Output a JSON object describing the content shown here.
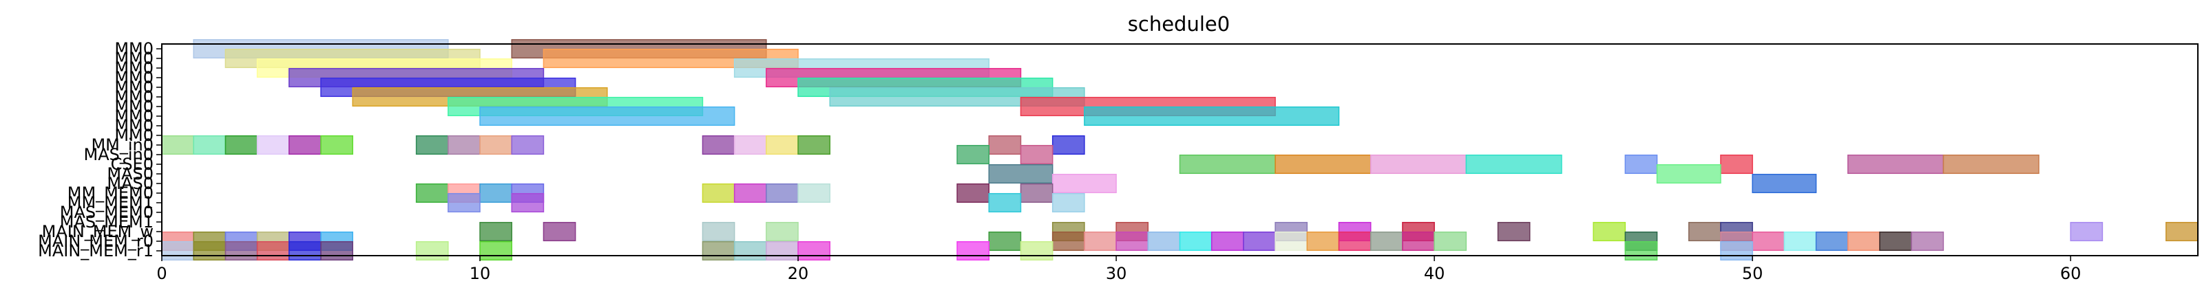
{
  "chart_data": {
    "type": "bar",
    "title": "schedule0",
    "xlabel": "",
    "ylabel": "",
    "xlim": [
      0,
      64
    ],
    "xticks": [
      0,
      10,
      20,
      30,
      40,
      50,
      60
    ],
    "rows": [
      "MM0",
      "MM0",
      "MM0",
      "MM0",
      "MM0",
      "MM0",
      "MM0",
      "MM0",
      "MM0",
      "MM0",
      "MM_in0",
      "MAS_in0",
      "CSE0",
      "MAS0",
      "MAS0",
      "MM_MEM0",
      "MM_MEM1",
      "MAS_MEM0",
      "MAS_MEM1",
      "MAIN_MEM_w",
      "MAIN_MEM_r0",
      "MAIN_MEM_r1"
    ],
    "tasks": [
      {
        "row": 0,
        "start": 1,
        "end": 9,
        "color": "#aec7e8"
      },
      {
        "row": 0,
        "start": 11,
        "end": 19,
        "color": "#8c564b"
      },
      {
        "row": 1,
        "start": 2,
        "end": 10,
        "color": "#dbdb8d"
      },
      {
        "row": 1,
        "start": 12,
        "end": 20,
        "color": "#ff9f50"
      },
      {
        "row": 2,
        "start": 3,
        "end": 11,
        "color": "#ffff99"
      },
      {
        "row": 2,
        "start": 18,
        "end": 26,
        "color": "#9edae5"
      },
      {
        "row": 3,
        "start": 4,
        "end": 12,
        "color": "#6a3dcb"
      },
      {
        "row": 3,
        "start": 19,
        "end": 27,
        "color": "#e7298a"
      },
      {
        "row": 4,
        "start": 5,
        "end": 13,
        "color": "#3b2fe0"
      },
      {
        "row": 4,
        "start": 20,
        "end": 28,
        "color": "#2ee8a8"
      },
      {
        "row": 5,
        "start": 6,
        "end": 14,
        "color": "#d9a326"
      },
      {
        "row": 5,
        "start": 21,
        "end": 29,
        "color": "#6fcfcf"
      },
      {
        "row": 6,
        "start": 9,
        "end": 17,
        "color": "#3ff2a6"
      },
      {
        "row": 6,
        "start": 27,
        "end": 35,
        "color": "#ec3a4f"
      },
      {
        "row": 7,
        "start": 10,
        "end": 18,
        "color": "#46b4f0"
      },
      {
        "row": 7,
        "start": 29,
        "end": 37,
        "color": "#1ec8d0"
      },
      {
        "row": 10,
        "start": 0,
        "end": 1,
        "color": "#98df8a"
      },
      {
        "row": 10,
        "start": 1,
        "end": 2,
        "color": "#6ee8b0"
      },
      {
        "row": 10,
        "start": 2,
        "end": 3,
        "color": "#2ca02c"
      },
      {
        "row": 10,
        "start": 3,
        "end": 4,
        "color": "#e0c8f8"
      },
      {
        "row": 10,
        "start": 4,
        "end": 5,
        "color": "#a12aa8"
      },
      {
        "row": 10,
        "start": 5,
        "end": 6,
        "color": "#5fdc2e"
      },
      {
        "row": 10,
        "start": 8,
        "end": 9,
        "color": "#2e8b57"
      },
      {
        "row": 10,
        "start": 9,
        "end": 10,
        "color": "#a67ca6"
      },
      {
        "row": 10,
        "start": 10,
        "end": 11,
        "color": "#e8a07c"
      },
      {
        "row": 10,
        "start": 11,
        "end": 12,
        "color": "#8a5fd8"
      },
      {
        "row": 10,
        "start": 17,
        "end": 18,
        "color": "#8a3ea0"
      },
      {
        "row": 10,
        "start": 18,
        "end": 19,
        "color": "#e8b4e8"
      },
      {
        "row": 10,
        "start": 19,
        "end": 20,
        "color": "#f0e070"
      },
      {
        "row": 10,
        "start": 20,
        "end": 21,
        "color": "#4a9e2a"
      },
      {
        "row": 10,
        "start": 26,
        "end": 27,
        "color": "#b85a6a"
      },
      {
        "row": 10,
        "start": 28,
        "end": 29,
        "color": "#2a2ad8"
      },
      {
        "row": 11,
        "start": 25,
        "end": 26,
        "color": "#3aa862"
      },
      {
        "row": 11,
        "start": 27,
        "end": 28,
        "color": "#c8588a"
      },
      {
        "row": 12,
        "start": 32,
        "end": 35,
        "color": "#5cc85c"
      },
      {
        "row": 12,
        "start": 35,
        "end": 38,
        "color": "#d9861f"
      },
      {
        "row": 12,
        "start": 38,
        "end": 41,
        "color": "#e89ad8"
      },
      {
        "row": 12,
        "start": 41,
        "end": 44,
        "color": "#2ee0c8"
      },
      {
        "row": 12,
        "start": 46,
        "end": 47,
        "color": "#6a8ef0"
      },
      {
        "row": 12,
        "start": 49,
        "end": 50,
        "color": "#ec3a4f"
      },
      {
        "row": 12,
        "start": 53,
        "end": 56,
        "color": "#b8589a"
      },
      {
        "row": 12,
        "start": 56,
        "end": 59,
        "color": "#c87a4a"
      },
      {
        "row": 13,
        "start": 26,
        "end": 28,
        "color": "#4a7a8a"
      },
      {
        "row": 13,
        "start": 47,
        "end": 49,
        "color": "#6af088"
      },
      {
        "row": 14,
        "start": 28,
        "end": 30,
        "color": "#ee9ee8"
      },
      {
        "row": 14,
        "start": 50,
        "end": 52,
        "color": "#2a6ad8"
      },
      {
        "row": 15,
        "start": 8,
        "end": 9,
        "color": "#3ab03a"
      },
      {
        "row": 15,
        "start": 9,
        "end": 10,
        "color": "#ff9896"
      },
      {
        "row": 15,
        "start": 10,
        "end": 11,
        "color": "#3a9ed8"
      },
      {
        "row": 15,
        "start": 11,
        "end": 12,
        "color": "#6a6ae8"
      },
      {
        "row": 15,
        "start": 17,
        "end": 18,
        "color": "#c8d830"
      },
      {
        "row": 15,
        "start": 18,
        "end": 19,
        "color": "#c83ac8"
      },
      {
        "row": 15,
        "start": 19,
        "end": 20,
        "color": "#7a7ac8"
      },
      {
        "row": 15,
        "start": 20,
        "end": 21,
        "color": "#b8e0d8"
      },
      {
        "row": 15,
        "start": 25,
        "end": 26,
        "color": "#7a2a5a"
      },
      {
        "row": 15,
        "start": 27,
        "end": 28,
        "color": "#8a5a8a"
      },
      {
        "row": 16,
        "start": 9,
        "end": 10,
        "color": "#7a8ae8"
      },
      {
        "row": 16,
        "start": 11,
        "end": 12,
        "color": "#a84ad8"
      },
      {
        "row": 16,
        "start": 26,
        "end": 27,
        "color": "#2ec8d8"
      },
      {
        "row": 16,
        "start": 28,
        "end": 29,
        "color": "#9ad0e8"
      },
      {
        "row": 19,
        "start": 10,
        "end": 11,
        "color": "#3a8a3a"
      },
      {
        "row": 19,
        "start": 12,
        "end": 13,
        "color": "#8a3a8a"
      },
      {
        "row": 19,
        "start": 17,
        "end": 18,
        "color": "#a8c8c8"
      },
      {
        "row": 19,
        "start": 19,
        "end": 20,
        "color": "#a8e0a0"
      },
      {
        "row": 19,
        "start": 28,
        "end": 29,
        "color": "#8a8a3a"
      },
      {
        "row": 19,
        "start": 30,
        "end": 31,
        "color": "#b84a4a"
      },
      {
        "row": 19,
        "start": 35,
        "end": 36,
        "color": "#8a7ab8"
      },
      {
        "row": 19,
        "start": 37,
        "end": 38,
        "color": "#c82ad8"
      },
      {
        "row": 19,
        "start": 39,
        "end": 40,
        "color": "#c81a3a"
      },
      {
        "row": 19,
        "start": 42,
        "end": 43,
        "color": "#6a3a5a"
      },
      {
        "row": 19,
        "start": 45,
        "end": 46,
        "color": "#a8e82e"
      },
      {
        "row": 19,
        "start": 48,
        "end": 49,
        "color": "#8a6a5a"
      },
      {
        "row": 19,
        "start": 49,
        "end": 50,
        "color": "#3a3a8a"
      },
      {
        "row": 19,
        "start": 60,
        "end": 61,
        "color": "#a88af0"
      },
      {
        "row": 19,
        "start": 63,
        "end": 64,
        "color": "#c8922a"
      },
      {
        "row": 20,
        "start": 0,
        "end": 1,
        "color": "#f08080"
      },
      {
        "row": 20,
        "start": 1,
        "end": 2,
        "color": "#8a8a2a"
      },
      {
        "row": 20,
        "start": 2,
        "end": 3,
        "color": "#6a7ae8"
      },
      {
        "row": 20,
        "start": 3,
        "end": 4,
        "color": "#b8b878"
      },
      {
        "row": 20,
        "start": 4,
        "end": 5,
        "color": "#3a2ad8"
      },
      {
        "row": 20,
        "start": 5,
        "end": 6,
        "color": "#3ab0f0"
      },
      {
        "row": 20,
        "start": 26,
        "end": 27,
        "color": "#3a9a3a"
      },
      {
        "row": 20,
        "start": 28,
        "end": 29,
        "color": "#9a5a3a"
      },
      {
        "row": 20,
        "start": 29,
        "end": 30,
        "color": "#e88a8a"
      },
      {
        "row": 20,
        "start": 30,
        "end": 31,
        "color": "#c84ab8"
      },
      {
        "row": 20,
        "start": 31,
        "end": 32,
        "color": "#8ab8e8"
      },
      {
        "row": 20,
        "start": 32,
        "end": 33,
        "color": "#2ee8e8"
      },
      {
        "row": 20,
        "start": 33,
        "end": 34,
        "color": "#b82ad8"
      },
      {
        "row": 20,
        "start": 34,
        "end": 35,
        "color": "#7a3ad8"
      },
      {
        "row": 20,
        "start": 35,
        "end": 36,
        "color": "#e8f0d8"
      },
      {
        "row": 20,
        "start": 36,
        "end": 37,
        "color": "#e89a3a"
      },
      {
        "row": 20,
        "start": 37,
        "end": 38,
        "color": "#e82a6a"
      },
      {
        "row": 20,
        "start": 38,
        "end": 39,
        "color": "#8a9a8a"
      },
      {
        "row": 20,
        "start": 39,
        "end": 40,
        "color": "#c82a8a"
      },
      {
        "row": 20,
        "start": 40,
        "end": 41,
        "color": "#8ad88a"
      },
      {
        "row": 20,
        "start": 46,
        "end": 47,
        "color": "#2a6a4a"
      },
      {
        "row": 20,
        "start": 49,
        "end": 50,
        "color": "#d88a9a"
      },
      {
        "row": 20,
        "start": 50,
        "end": 51,
        "color": "#e8589a"
      },
      {
        "row": 20,
        "start": 51,
        "end": 52,
        "color": "#8af0f0"
      },
      {
        "row": 20,
        "start": 52,
        "end": 53,
        "color": "#3a7ad8"
      },
      {
        "row": 20,
        "start": 53,
        "end": 54,
        "color": "#f08a6a"
      },
      {
        "row": 20,
        "start": 54,
        "end": 55,
        "color": "#3a2a2a"
      },
      {
        "row": 20,
        "start": 55,
        "end": 56,
        "color": "#a86aa8"
      },
      {
        "row": 21,
        "start": 0,
        "end": 1,
        "color": "#aec7e8"
      },
      {
        "row": 21,
        "start": 1,
        "end": 2,
        "color": "#8a8a2a"
      },
      {
        "row": 21,
        "start": 2,
        "end": 3,
        "color": "#8a5a8a"
      },
      {
        "row": 21,
        "start": 3,
        "end": 4,
        "color": "#d84a5a"
      },
      {
        "row": 21,
        "start": 4,
        "end": 5,
        "color": "#2a2ad8"
      },
      {
        "row": 21,
        "start": 5,
        "end": 6,
        "color": "#6a3a7a"
      },
      {
        "row": 21,
        "start": 8,
        "end": 9,
        "color": "#b8f08a"
      },
      {
        "row": 21,
        "start": 10,
        "end": 11,
        "color": "#5ad82e"
      },
      {
        "row": 21,
        "start": 17,
        "end": 18,
        "color": "#8a9a6a"
      },
      {
        "row": 21,
        "start": 18,
        "end": 19,
        "color": "#8ac8c8"
      },
      {
        "row": 21,
        "start": 19,
        "end": 20,
        "color": "#c8a8d8"
      },
      {
        "row": 21,
        "start": 20,
        "end": 21,
        "color": "#e83ad8"
      },
      {
        "row": 21,
        "start": 25,
        "end": 26,
        "color": "#f03af0"
      },
      {
        "row": 21,
        "start": 27,
        "end": 28,
        "color": "#c8f08a"
      },
      {
        "row": 21,
        "start": 46,
        "end": 47,
        "color": "#5ad85a"
      },
      {
        "row": 21,
        "start": 49,
        "end": 50,
        "color": "#8ab8f0"
      }
    ]
  }
}
